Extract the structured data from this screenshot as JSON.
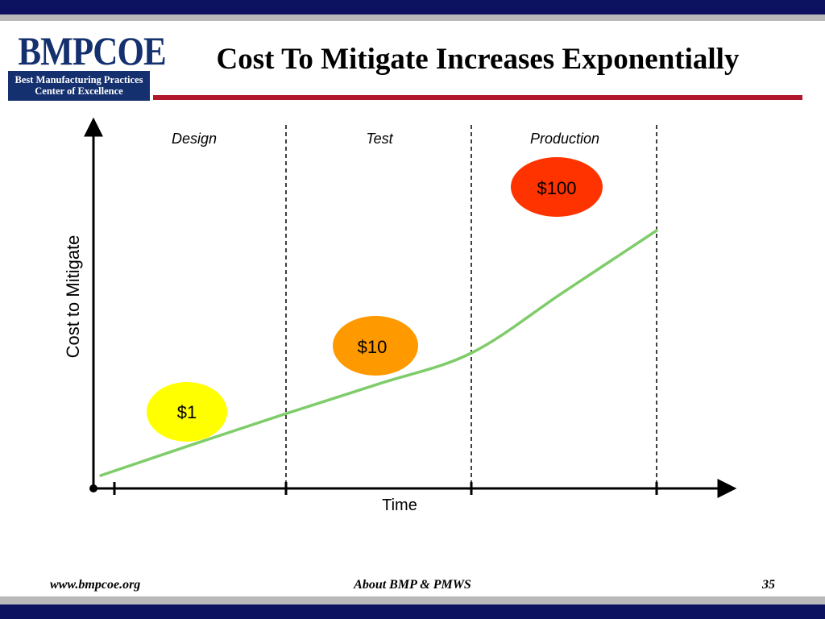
{
  "header": {
    "logo_word": "BMPCOE",
    "logo_line1": "Best Manufacturing Practices",
    "logo_line2": "Center of Excellence",
    "title": "Cost To Mitigate Increases Exponentially"
  },
  "chart_data": {
    "type": "line",
    "title": "",
    "xlabel": "Time",
    "ylabel": "Cost to Mitigate",
    "phases": [
      "Design",
      "Test",
      "Production"
    ],
    "series": [
      {
        "x": [
          0,
          0.5,
          1,
          1.5,
          2,
          2.5,
          3
        ],
        "y": [
          1,
          1.8,
          3.2,
          5.6,
          10,
          31.6,
          100
        ]
      }
    ],
    "annotations": [
      {
        "phase": "Design",
        "label": "$1",
        "value": 1,
        "color": "#ffff00"
      },
      {
        "phase": "Test",
        "label": "$10",
        "value": 10,
        "color": "#ff9900"
      },
      {
        "phase": "Production",
        "label": "$100",
        "value": 100,
        "color": "#ff3300"
      }
    ],
    "line_color": "#7fcc6a",
    "grid": false,
    "legend": "none"
  },
  "footer": {
    "left": "www.bmpcoe.org",
    "center": "About BMP & PMWS",
    "right": "35"
  }
}
